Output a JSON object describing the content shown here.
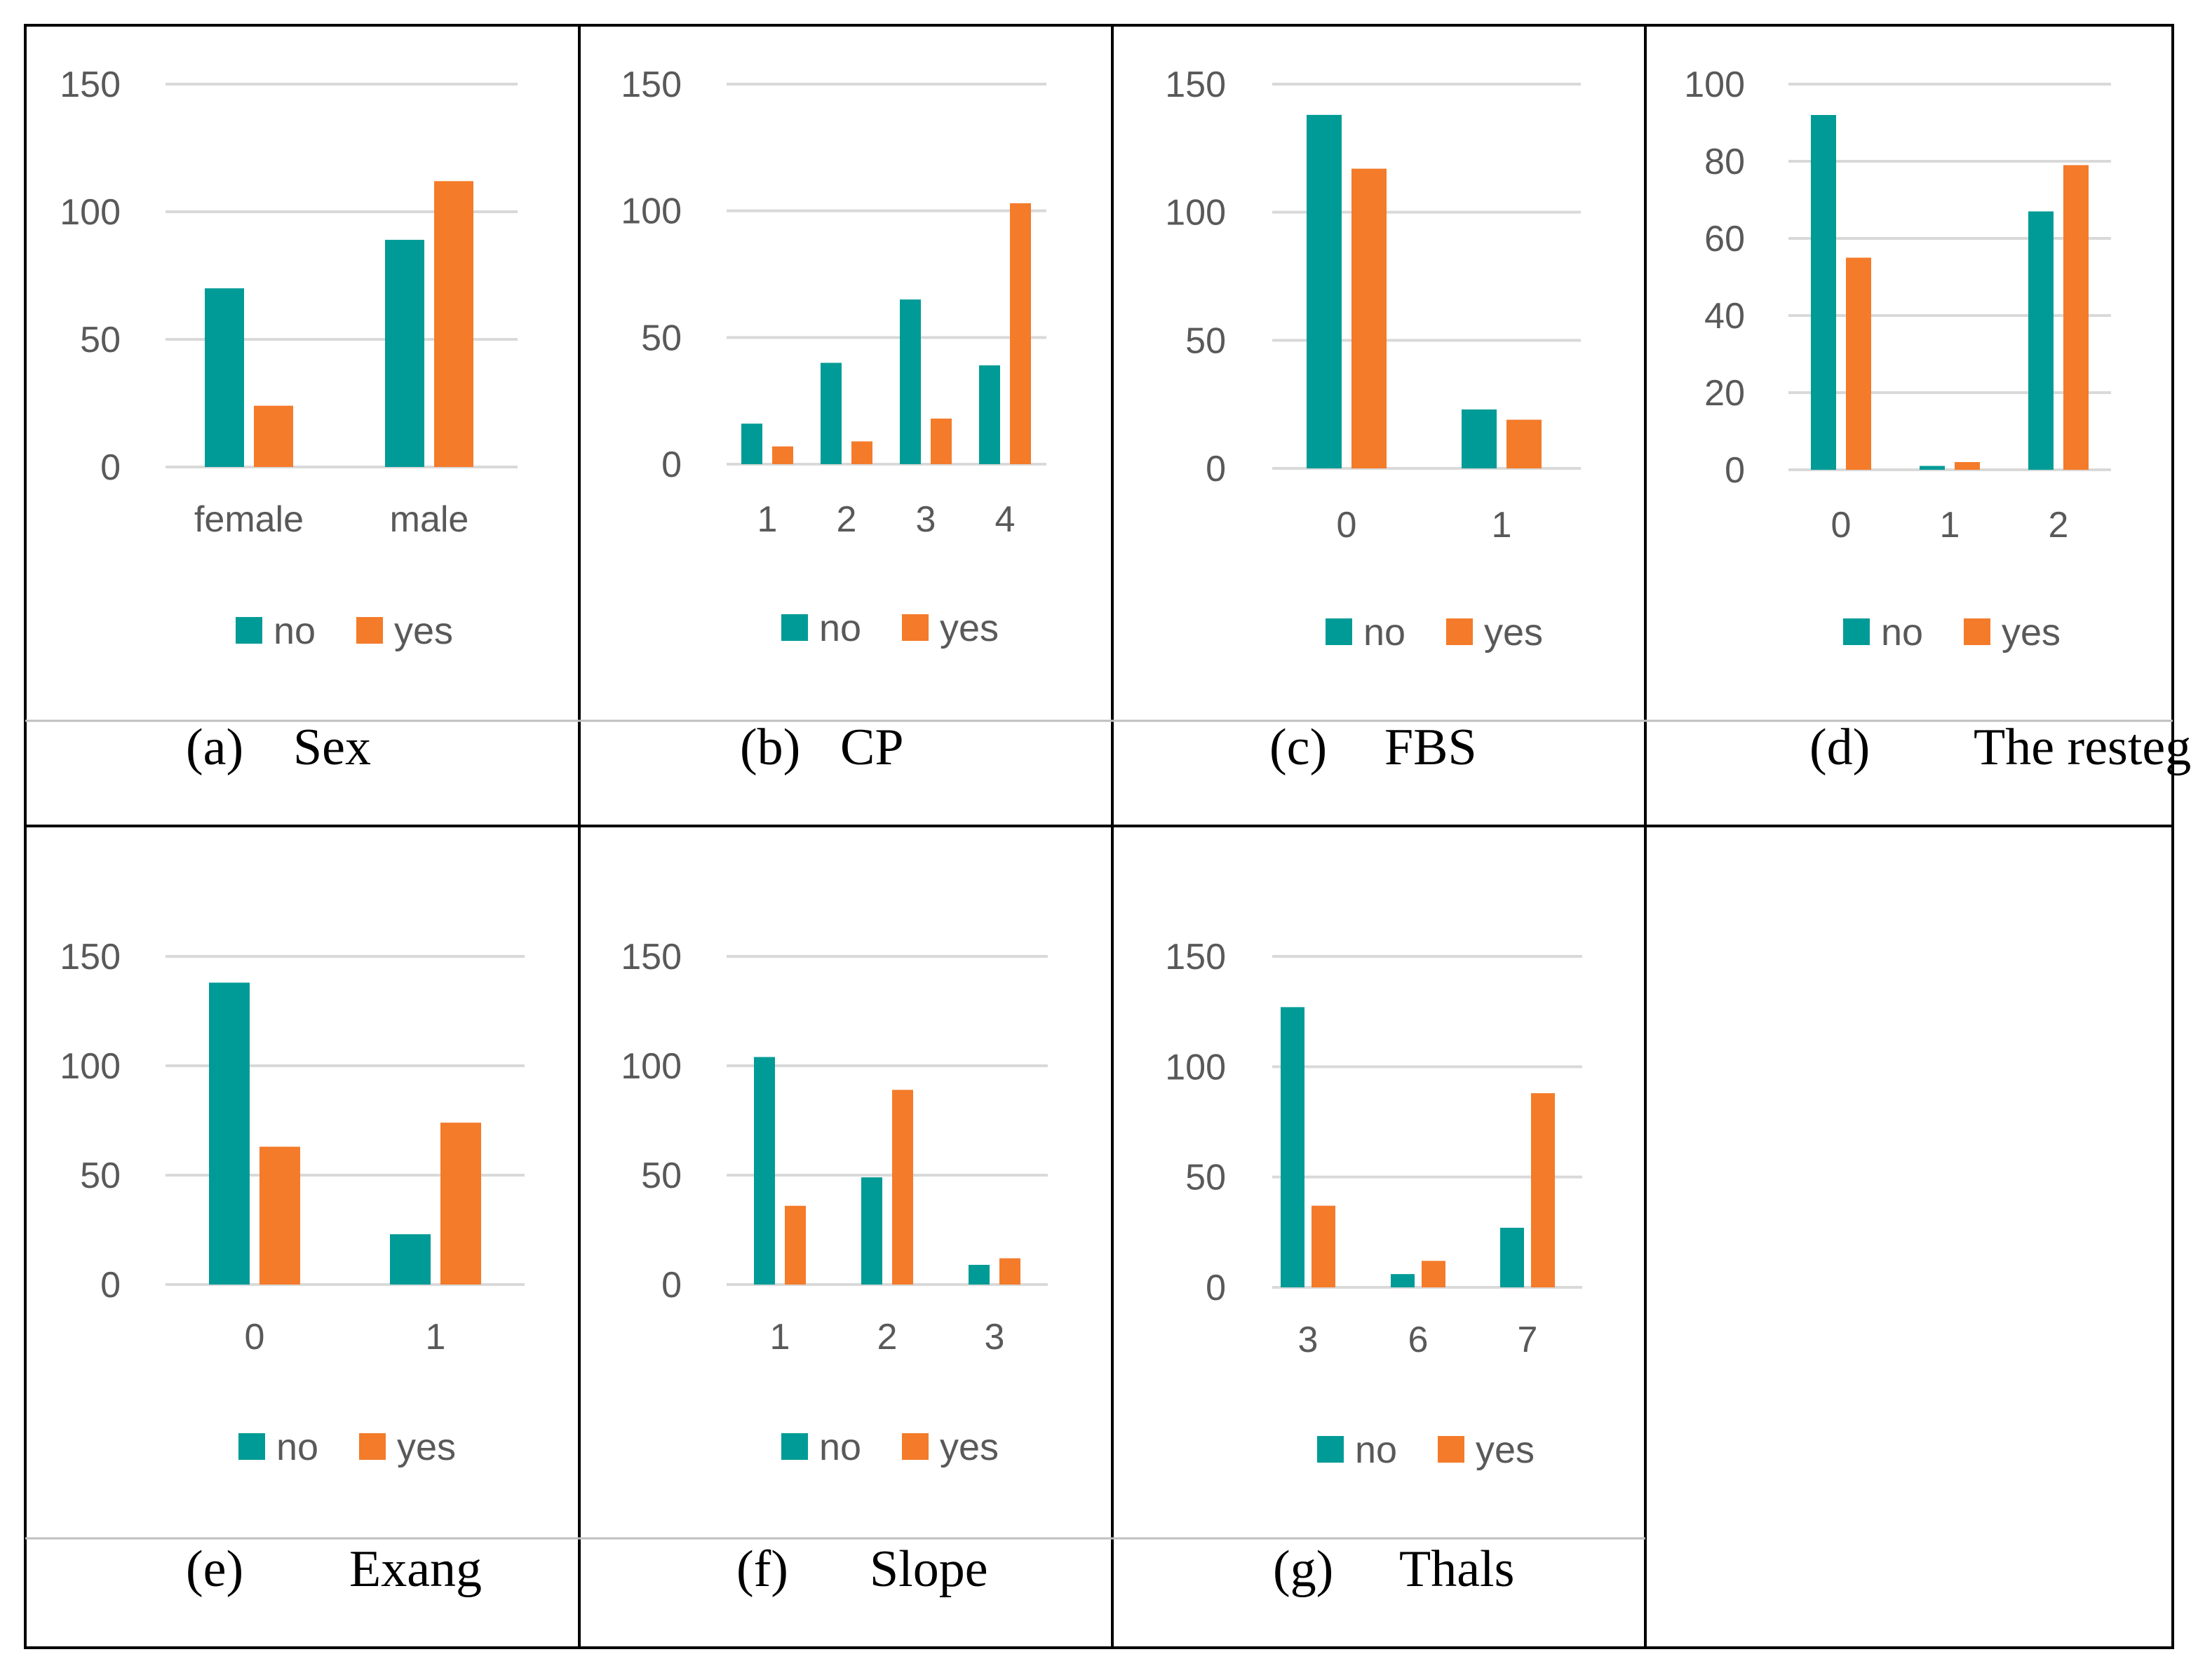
{
  "figure": {
    "colors": {
      "no": "#009B96",
      "yes": "#F47B2A",
      "grid": "#D9D9D9",
      "axis_text": "#595959",
      "border": "#000000"
    }
  },
  "chart_data": [
    {
      "id": "a",
      "type": "bar",
      "caption_label": "(a)",
      "caption_title": "Sex",
      "categories": [
        "female",
        "male"
      ],
      "series": [
        {
          "name": "no",
          "values": [
            70,
            89
          ]
        },
        {
          "name": "yes",
          "values": [
            24,
            112
          ]
        }
      ],
      "ylim": [
        0,
        150
      ],
      "yticks": [
        0,
        50,
        100,
        150
      ],
      "legend": "bottom-center",
      "grid": true
    },
    {
      "id": "b",
      "type": "bar",
      "caption_label": "(b)",
      "caption_title": "CP",
      "categories": [
        "1",
        "2",
        "3",
        "4"
      ],
      "series": [
        {
          "name": "no",
          "values": [
            16,
            40,
            65,
            39
          ]
        },
        {
          "name": "yes",
          "values": [
            7,
            9,
            18,
            103
          ]
        }
      ],
      "ylim": [
        0,
        150
      ],
      "yticks": [
        0,
        50,
        100,
        150
      ],
      "legend": "bottom-center",
      "grid": true
    },
    {
      "id": "c",
      "type": "bar",
      "caption_label": "(c)",
      "caption_title": "FBS",
      "categories": [
        "0",
        "1"
      ],
      "series": [
        {
          "name": "no",
          "values": [
            138,
            23
          ]
        },
        {
          "name": "yes",
          "values": [
            117,
            19
          ]
        }
      ],
      "ylim": [
        0,
        150
      ],
      "yticks": [
        0,
        50,
        100,
        150
      ],
      "legend": "bottom-center",
      "grid": true
    },
    {
      "id": "d",
      "type": "bar",
      "caption_label": "(d)",
      "caption_title": "The resteg",
      "categories": [
        "0",
        "1",
        "2"
      ],
      "series": [
        {
          "name": "no",
          "values": [
            92,
            1,
            67
          ]
        },
        {
          "name": "yes",
          "values": [
            55,
            2,
            79
          ]
        }
      ],
      "ylim": [
        0,
        100
      ],
      "yticks": [
        0,
        20,
        40,
        60,
        80,
        100
      ],
      "legend": "bottom-center",
      "grid": true
    },
    {
      "id": "e",
      "type": "bar",
      "caption_label": "(e)",
      "caption_title": "Exang",
      "categories": [
        "0",
        "1"
      ],
      "series": [
        {
          "name": "no",
          "values": [
            138,
            23
          ]
        },
        {
          "name": "yes",
          "values": [
            63,
            74
          ]
        }
      ],
      "ylim": [
        0,
        150
      ],
      "yticks": [
        0,
        50,
        100,
        150
      ],
      "legend": "bottom-center",
      "grid": true
    },
    {
      "id": "f",
      "type": "bar",
      "caption_label": "(f)",
      "caption_title": "Slope",
      "categories": [
        "1",
        "2",
        "3"
      ],
      "series": [
        {
          "name": "no",
          "values": [
            104,
            49,
            9
          ]
        },
        {
          "name": "yes",
          "values": [
            36,
            89,
            12
          ]
        }
      ],
      "ylim": [
        0,
        150
      ],
      "yticks": [
        0,
        50,
        100,
        150
      ],
      "legend": "bottom-center",
      "grid": true
    },
    {
      "id": "g",
      "type": "bar",
      "caption_label": "(g)",
      "caption_title": "Thals",
      "categories": [
        "3",
        "6",
        "7"
      ],
      "series": [
        {
          "name": "no",
          "values": [
            127,
            6,
            27
          ]
        },
        {
          "name": "yes",
          "values": [
            37,
            12,
            88
          ]
        }
      ],
      "ylim": [
        0,
        150
      ],
      "yticks": [
        0,
        50,
        100,
        150
      ],
      "legend": "bottom-center",
      "grid": true
    }
  ]
}
